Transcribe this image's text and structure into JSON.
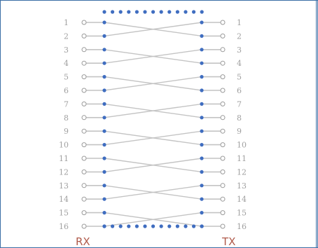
{
  "diagram": {
    "rx_label": "RX",
    "tx_label": "TX",
    "left_ports": [
      "1",
      "2",
      "3",
      "4",
      "5",
      "6",
      "7",
      "8",
      "9",
      "10",
      "11",
      "12",
      "13",
      "14",
      "15",
      "16"
    ],
    "right_ports": [
      "1",
      "2",
      "3",
      "4",
      "5",
      "6",
      "7",
      "8",
      "9",
      "10",
      "11",
      "12",
      "13",
      "14",
      "15",
      "16"
    ],
    "colors": {
      "port_text": "#a0a0a0",
      "wire": "#c4c4c4",
      "dot": "#3f6dc0",
      "label": "#b05a4a",
      "frame": "#3a6ea5"
    }
  }
}
